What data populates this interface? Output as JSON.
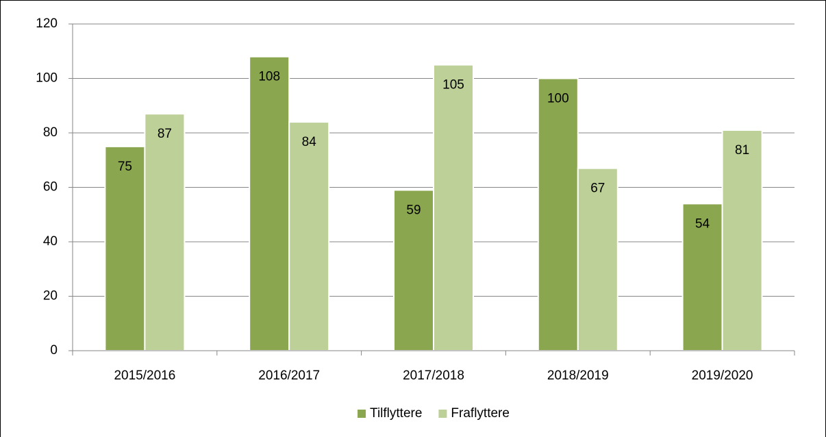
{
  "chart_data": {
    "type": "bar",
    "categories": [
      "2015/2016",
      "2016/2017",
      "2017/2018",
      "2018/2019",
      "2019/2020"
    ],
    "series": [
      {
        "name": "Tilflyttere",
        "color": "#8aa64f",
        "values": [
          75,
          108,
          59,
          100,
          54
        ]
      },
      {
        "name": "Fraflyttere",
        "color": "#bcd097",
        "values": [
          87,
          84,
          105,
          67,
          81
        ]
      }
    ],
    "ylim": [
      0,
      120
    ],
    "yticks": [
      0,
      20,
      40,
      60,
      80,
      100,
      120
    ],
    "grid": true,
    "legend": "bottom"
  }
}
